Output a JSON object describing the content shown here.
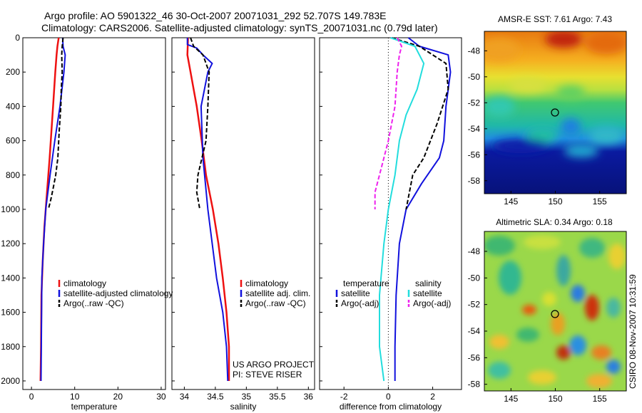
{
  "figure": {
    "title_line1": "Argo profile: AO 5901322_46 30-Oct-2007 20071031_292 52.707S 149.783E",
    "title_line2": "Climatology: CARS2006. Satellite-adjusted climatology: synTS_20071031.nc (0.79d later)",
    "credit_line1": "US ARGO PROJECT",
    "credit_line2": "PI: STEVE RISER",
    "stamp": "CSIRO 08-Nov-2007 10:31:59"
  },
  "colors": {
    "climatology": "#ee1111",
    "satellite": "#1111dd",
    "argo": "#000000",
    "t_diff_satellite": "#1111dd",
    "s_diff_satellite": "#22dddd",
    "s_diff_argo": "#ee22ee"
  },
  "chart_data": [
    {
      "type": "line",
      "id": "temperature",
      "xlabel": "temperature",
      "ylabel": "",
      "xlim": [
        -2,
        31
      ],
      "ylim": [
        0,
        2050
      ],
      "y_reversed": true,
      "xticks": [
        "0",
        "10",
        "20",
        "30"
      ],
      "yticks": [
        "0",
        "200",
        "400",
        "600",
        "800",
        "1000",
        "1200",
        "1400",
        "1600",
        "1800",
        "2000"
      ],
      "legend": [
        "climatology",
        "satellite-adjusted climatology",
        "Argo(..raw -QC)"
      ],
      "series": [
        {
          "name": "climatology",
          "x": [
            6.3,
            6.0,
            5.8,
            5.5,
            5.0,
            4.2,
            3.6,
            3.0,
            2.6,
            2.3,
            2.2,
            2.1
          ],
          "y": [
            0,
            50,
            100,
            200,
            400,
            700,
            900,
            1100,
            1300,
            1500,
            1800,
            2000
          ]
        },
        {
          "name": "satellite-adjusted climatology",
          "x": [
            7.2,
            7.3,
            7.8,
            7.5,
            6.6,
            5.4,
            4.3,
            3.3,
            2.8,
            2.4,
            2.3,
            2.2
          ],
          "y": [
            0,
            50,
            100,
            200,
            400,
            600,
            800,
            1000,
            1200,
            1400,
            1700,
            2000
          ]
        },
        {
          "name": "Argo(..raw -QC)",
          "x": [
            7.3,
            7.1,
            7.0,
            7.1,
            6.9,
            6.8,
            6.4,
            6.1,
            5.6,
            5.0,
            4.5,
            3.9
          ],
          "y": [
            0,
            50,
            100,
            200,
            300,
            400,
            550,
            700,
            800,
            880,
            940,
            1000
          ]
        }
      ]
    },
    {
      "type": "line",
      "id": "salinity",
      "xlabel": "salinity",
      "ylabel": "",
      "xlim": [
        33.8,
        36.1
      ],
      "ylim": [
        0,
        2050
      ],
      "y_reversed": true,
      "xticks": [
        "34",
        "34.5",
        "35",
        "35.5",
        "36"
      ],
      "legend": [
        "climatology",
        "satellite adj. clim.",
        "Argo(..raw -QC)"
      ],
      "series": [
        {
          "name": "climatology",
          "x": [
            34.06,
            34.05,
            34.1,
            34.2,
            34.28,
            34.35,
            34.46,
            34.55,
            34.62,
            34.68,
            34.72,
            34.72
          ],
          "y": [
            0,
            100,
            200,
            400,
            600,
            800,
            1000,
            1200,
            1400,
            1600,
            1800,
            2000
          ]
        },
        {
          "name": "satellite adj. clim.",
          "x": [
            34.05,
            34.05,
            34.2,
            34.3,
            34.45,
            34.38,
            34.27,
            34.3,
            34.38,
            34.52,
            34.62,
            34.68,
            34.7
          ],
          "y": [
            0,
            40,
            60,
            100,
            150,
            200,
            400,
            700,
            1000,
            1400,
            1600,
            1800,
            2000
          ]
        },
        {
          "name": "Argo(..raw -QC)",
          "x": [
            34.1,
            34.15,
            34.3,
            34.4,
            34.38,
            34.35,
            34.22,
            34.2,
            34.25
          ],
          "y": [
            0,
            50,
            100,
            200,
            400,
            600,
            800,
            900,
            1000
          ]
        }
      ]
    },
    {
      "type": "line",
      "id": "difference",
      "xlabel": "difference from climatology",
      "ylabel": "",
      "xlim": [
        -3.1,
        3.3
      ],
      "ylim": [
        0,
        2050
      ],
      "y_reversed": true,
      "xticks": [
        "-2",
        "0",
        "2"
      ],
      "legend": [
        "temperature",
        "satellite",
        "Argo(-adj)",
        "salinity",
        "satellite",
        "Argo(-adj)"
      ],
      "series": [
        {
          "name": "temperature satellite",
          "x": [
            0.9,
            1.4,
            2.7,
            2.8,
            2.6,
            2.5,
            2.3,
            1.5,
            0.8,
            0.5,
            0.35,
            0.3,
            0.3
          ],
          "y": [
            0,
            50,
            100,
            200,
            400,
            600,
            700,
            850,
            1000,
            1200,
            1500,
            1800,
            2000
          ]
        },
        {
          "name": "temperature Argo(-adj)",
          "x": [
            0.15,
            1.4,
            2.6,
            2.7,
            2.2,
            1.6,
            1.1,
            0.8
          ],
          "y": [
            0,
            50,
            150,
            300,
            500,
            700,
            800,
            1000
          ]
        },
        {
          "name": "salinity satellite",
          "x": [
            0.1,
            1.2,
            1.6,
            1.3,
            0.8,
            0.5,
            0.3,
            0.0,
            -0.2,
            -0.4,
            -0.4,
            -0.2
          ],
          "y": [
            0,
            50,
            150,
            300,
            450,
            600,
            800,
            1000,
            1200,
            1500,
            1800,
            2000
          ]
        },
        {
          "name": "salinity Argo(-adj)",
          "x": [
            0.4,
            0.6,
            0.5,
            0.4,
            0.3,
            0.0,
            -0.3,
            -0.6,
            -0.6
          ],
          "y": [
            0,
            50,
            100,
            200,
            400,
            600,
            750,
            900,
            1000
          ]
        }
      ]
    },
    {
      "type": "heatmap",
      "id": "sst_map",
      "title": "AMSR-E SST: 7.61 Argo: 7.43",
      "xlim": [
        142,
        158
      ],
      "ylim": [
        -59,
        -46.5
      ],
      "xticks": [
        "145",
        "150",
        "155"
      ],
      "yticks": [
        "-48",
        "-50",
        "-52",
        "-54",
        "-56",
        "-58"
      ],
      "marker": {
        "lon": 149.78,
        "lat": -52.71
      }
    },
    {
      "type": "heatmap",
      "id": "sla_map",
      "title": "Altimetric SLA: 0.34 Argo: 0.18",
      "xlim": [
        142,
        158
      ],
      "ylim": [
        -58.5,
        -46.5
      ],
      "xticks": [
        "145",
        "150",
        "155"
      ],
      "yticks": [
        "-48",
        "-50",
        "-52",
        "-54",
        "-56",
        "-58"
      ],
      "marker": {
        "lon": 149.78,
        "lat": -52.71
      }
    }
  ]
}
